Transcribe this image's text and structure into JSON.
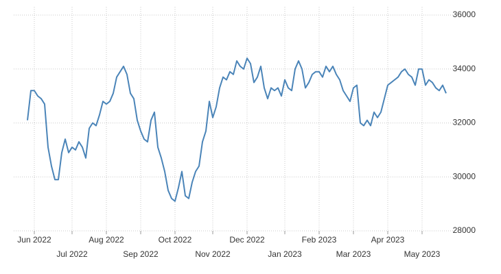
{
  "chart_data": {
    "type": "line",
    "categories": [
      null,
      null,
      "Jun 2022",
      null,
      null,
      null,
      null,
      null,
      null,
      null,
      null,
      null,
      null,
      "Jul 2022",
      null,
      null,
      null,
      null,
      null,
      null,
      null,
      null,
      null,
      "Aug 2022",
      null,
      null,
      null,
      null,
      null,
      null,
      null,
      null,
      null,
      "Sep 2022",
      null,
      null,
      null,
      null,
      null,
      null,
      null,
      null,
      null,
      "Oct 2022",
      null,
      null,
      null,
      null,
      null,
      null,
      null,
      null,
      null,
      null,
      "Nov 2022",
      null,
      null,
      null,
      null,
      null,
      null,
      null,
      null,
      null,
      "Dec 2022",
      null,
      null,
      null,
      null,
      null,
      null,
      null,
      null,
      null,
      null,
      "Jan 2023",
      null,
      null,
      null,
      null,
      null,
      null,
      null,
      null,
      null,
      "Feb 2023",
      null,
      null,
      null,
      null,
      null,
      null,
      null,
      null,
      null,
      "Mar 2023",
      null,
      null,
      null,
      null,
      null,
      null,
      null,
      null,
      null,
      "Apr 2023",
      null,
      null,
      null,
      null,
      null,
      null,
      null,
      null,
      null,
      "May 2023",
      null,
      null,
      null,
      null,
      null,
      null,
      null
    ],
    "series": [
      {
        "color": "#4a84b8",
        "values": [
          32100,
          33200,
          33200,
          33000,
          32900,
          32700,
          31100,
          30400,
          29900,
          29900,
          30900,
          31400,
          30900,
          31100,
          31000,
          31300,
          31100,
          30700,
          31800,
          32000,
          31900,
          32300,
          32800,
          32700,
          32800,
          33100,
          33700,
          33900,
          34100,
          33800,
          33100,
          32900,
          32100,
          31700,
          31400,
          31300,
          32100,
          32400,
          31100,
          30700,
          30200,
          29500,
          29200,
          29100,
          29600,
          30200,
          29300,
          29200,
          29800,
          30200,
          30400,
          31300,
          31700,
          32800,
          32200,
          32600,
          33300,
          33700,
          33600,
          33900,
          33800,
          34300,
          34100,
          34000,
          34400,
          34200,
          33500,
          33700,
          34100,
          33300,
          32900,
          33300,
          33200,
          33300,
          33000,
          33600,
          33300,
          33200,
          34000,
          34300,
          34000,
          33300,
          33500,
          33800,
          33900,
          33900,
          33700,
          34100,
          33900,
          34100,
          33800,
          33600,
          33200,
          33000,
          32800,
          33300,
          33400,
          32000,
          31900,
          32100,
          31900,
          32400,
          32200,
          32400,
          32900,
          33400,
          33500,
          33600,
          33700,
          33900,
          34000,
          33800,
          33700,
          33400,
          34000,
          34000,
          33400,
          33600,
          33500,
          33300,
          33200,
          33400,
          33100
        ]
      }
    ],
    "ylim": [
      28000,
      36000
    ],
    "yticks": [
      28000,
      30000,
      32000,
      34000,
      36000
    ],
    "grid": true
  }
}
